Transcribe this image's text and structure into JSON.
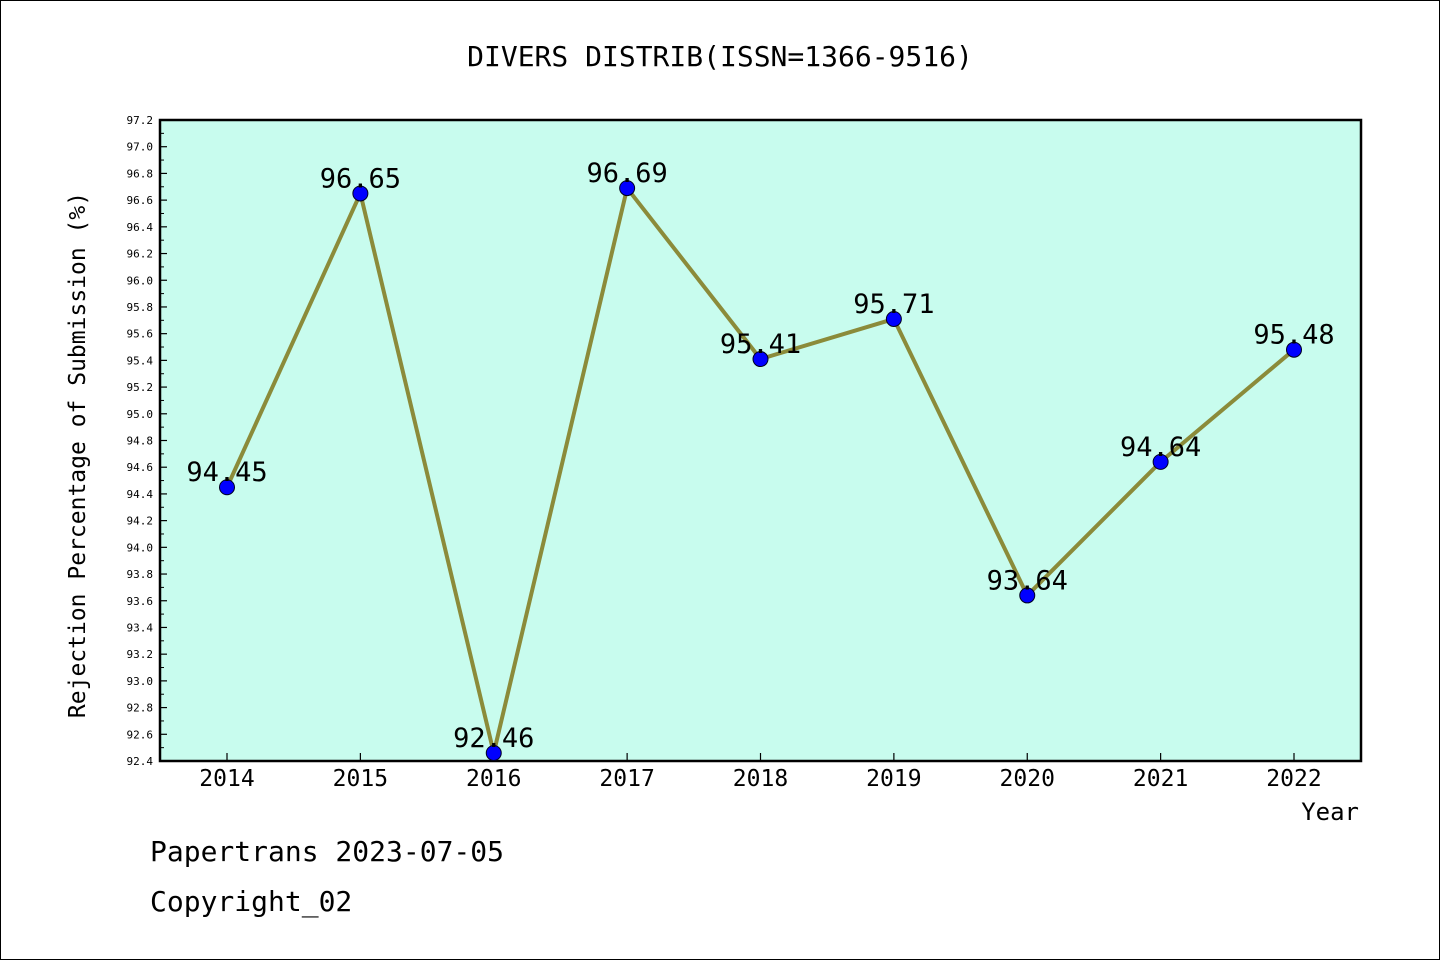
{
  "chart_data": {
    "type": "line",
    "title": "DIVERS DISTRIB(ISSN=1366-9516)",
    "xlabel": "Year",
    "ylabel": "Rejection Percentage of Submission (%)",
    "categories": [
      "2014",
      "2015",
      "2016",
      "2017",
      "2018",
      "2019",
      "2020",
      "2021",
      "2022"
    ],
    "series": [
      {
        "values": [
          94.45,
          96.65,
          92.46,
          96.69,
          95.41,
          95.71,
          93.64,
          94.64,
          95.48
        ]
      }
    ],
    "data_labels": [
      "94.45",
      "96.65",
      "92.46",
      "96.69",
      "95.41",
      "95.71",
      "93.64",
      "94.64",
      "95.48"
    ],
    "ylim": [
      92.4,
      97.2
    ],
    "yticks": [
      "92.4",
      "92.6",
      "92.8",
      "93.0",
      "93.2",
      "93.4",
      "93.6",
      "93.8",
      "94.0",
      "94.2",
      "94.4",
      "94.6",
      "94.8",
      "95.0",
      "95.2",
      "95.4",
      "95.6",
      "95.8",
      "96.0",
      "96.2",
      "96.4",
      "96.6",
      "96.8",
      "97.0",
      "97.2"
    ],
    "grid": false,
    "colors": {
      "plot_background": "#c8fcee",
      "line": "#8b8b3a",
      "marker": "#0000ff"
    }
  },
  "footer": {
    "line1": "Papertrans 2023-07-05",
    "line2": "Copyright_02"
  }
}
